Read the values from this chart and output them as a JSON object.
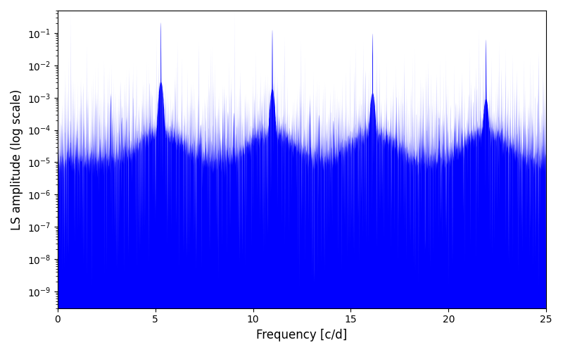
{
  "title": "",
  "xlabel": "Frequency [c/d]",
  "ylabel": "LS amplitude (log scale)",
  "xlim": [
    0,
    25
  ],
  "ylim": [
    1e-10,
    1.0
  ],
  "ylim_display": [
    3e-10,
    0.5
  ],
  "color": "#0000FF",
  "background_color": "#ffffff",
  "figsize": [
    8.0,
    5.0
  ],
  "dpi": 100,
  "major_peaks": [
    5.27,
    10.97,
    16.1,
    21.9
  ],
  "peak_amplitudes": [
    0.22,
    0.13,
    0.1,
    0.065
  ],
  "noise_floor_log_mean": -5.0,
  "noise_floor_log_std": 1.2,
  "seed": 42,
  "n_points": 8000
}
